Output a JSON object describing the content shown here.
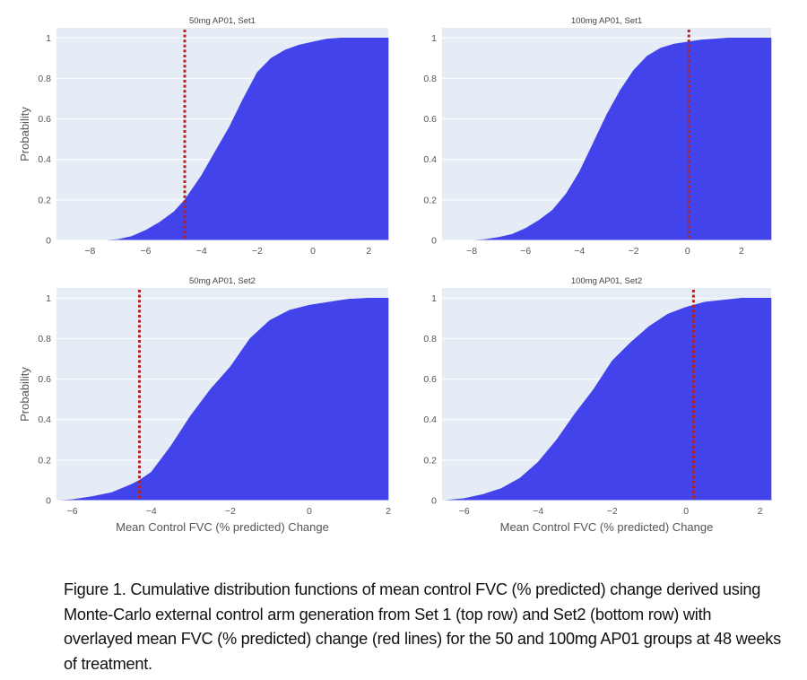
{
  "figure": {
    "caption": "Figure 1. Cumulative distribution functions of mean control FVC (% predicted) change derived using Monte-Carlo external control arm generation from Set 1 (top row) and Set2 (bottom row) with overlayed mean FVC (% predicted) change (red lines) for the 50 and 100mg AP01 groups at 48 weeks of treatment.",
    "colors": {
      "fill": "#4343ec",
      "plot_background": "#e5ecf6",
      "gridline": "#ffffff",
      "reference_line": "#b22222"
    }
  },
  "chart_data": [
    {
      "type": "area",
      "title": "50mg AP01, Set1",
      "xlabel": "",
      "ylabel": "Probability",
      "xlim": [
        -9.2,
        2.7
      ],
      "ylim": [
        0,
        1.05
      ],
      "xticks": [
        -8,
        -6,
        -4,
        -2,
        0,
        2
      ],
      "yticks": [
        0,
        0.2,
        0.4,
        0.6,
        0.8,
        1
      ],
      "grid": true,
      "reference_line_x": -4.6,
      "x": [
        -9.2,
        -7.5,
        -7.0,
        -6.5,
        -6.0,
        -5.5,
        -5.0,
        -4.6,
        -4.0,
        -3.5,
        -3.0,
        -2.5,
        -2.0,
        -1.5,
        -1.0,
        -0.5,
        0.0,
        0.5,
        1.0,
        2.0,
        2.7
      ],
      "y": [
        0.0,
        0.0,
        0.005,
        0.02,
        0.05,
        0.09,
        0.14,
        0.2,
        0.32,
        0.44,
        0.56,
        0.7,
        0.83,
        0.9,
        0.94,
        0.965,
        0.98,
        0.995,
        1.0,
        1.0,
        1.0
      ]
    },
    {
      "type": "area",
      "title": "100mg AP01, Set1",
      "xlabel": "",
      "ylabel": "",
      "xlim": [
        -9.1,
        3.1
      ],
      "ylim": [
        0,
        1.05
      ],
      "xticks": [
        -8,
        -6,
        -4,
        -2,
        0,
        2
      ],
      "yticks": [
        0,
        0.2,
        0.4,
        0.6,
        0.8,
        1
      ],
      "grid": true,
      "reference_line_x": 0.05,
      "x": [
        -9.1,
        -8.0,
        -7.5,
        -7.0,
        -6.5,
        -6.0,
        -5.5,
        -5.0,
        -4.5,
        -4.0,
        -3.5,
        -3.0,
        -2.5,
        -2.0,
        -1.5,
        -1.0,
        -0.5,
        0.0,
        0.5,
        1.0,
        1.5,
        3.1
      ],
      "y": [
        0.0,
        0.0,
        0.005,
        0.015,
        0.03,
        0.06,
        0.1,
        0.15,
        0.23,
        0.34,
        0.48,
        0.62,
        0.74,
        0.84,
        0.91,
        0.95,
        0.97,
        0.98,
        0.99,
        0.995,
        1.0,
        1.0
      ]
    },
    {
      "type": "area",
      "title": "50mg AP01, Set2",
      "xlabel": "Mean Control FVC (% predicted) Change",
      "ylabel": "Probability",
      "xlim": [
        -6.4,
        2.0
      ],
      "ylim": [
        0,
        1.05
      ],
      "xticks": [
        -6,
        -4,
        -2,
        0,
        2
      ],
      "yticks": [
        0,
        0.2,
        0.4,
        0.6,
        0.8,
        1
      ],
      "grid": true,
      "reference_line_x": -4.3,
      "x": [
        -6.4,
        -6.0,
        -5.5,
        -5.0,
        -4.5,
        -4.3,
        -4.0,
        -3.5,
        -3.0,
        -2.5,
        -2.0,
        -1.5,
        -1.0,
        -0.5,
        0.0,
        0.5,
        1.0,
        1.5,
        2.0
      ],
      "y": [
        0.0,
        0.005,
        0.02,
        0.04,
        0.08,
        0.1,
        0.14,
        0.27,
        0.42,
        0.55,
        0.66,
        0.8,
        0.89,
        0.94,
        0.965,
        0.98,
        0.995,
        1.0,
        1.0
      ]
    },
    {
      "type": "area",
      "title": "100mg AP01, Set2",
      "xlabel": "Mean Control FVC (% predicted) Change",
      "ylabel": "",
      "xlim": [
        -6.6,
        2.3
      ],
      "ylim": [
        0,
        1.05
      ],
      "xticks": [
        -6,
        -4,
        -2,
        0,
        2
      ],
      "yticks": [
        0,
        0.2,
        0.4,
        0.6,
        0.8,
        1
      ],
      "grid": true,
      "reference_line_x": 0.2,
      "x": [
        -6.6,
        -6.0,
        -5.5,
        -5.0,
        -4.5,
        -4.0,
        -3.5,
        -3.0,
        -2.5,
        -2.0,
        -1.5,
        -1.0,
        -0.5,
        0.0,
        0.2,
        0.5,
        1.0,
        1.5,
        2.3
      ],
      "y": [
        0.0,
        0.01,
        0.03,
        0.06,
        0.11,
        0.19,
        0.3,
        0.43,
        0.55,
        0.69,
        0.78,
        0.86,
        0.92,
        0.955,
        0.965,
        0.98,
        0.99,
        1.0,
        1.0
      ]
    }
  ]
}
